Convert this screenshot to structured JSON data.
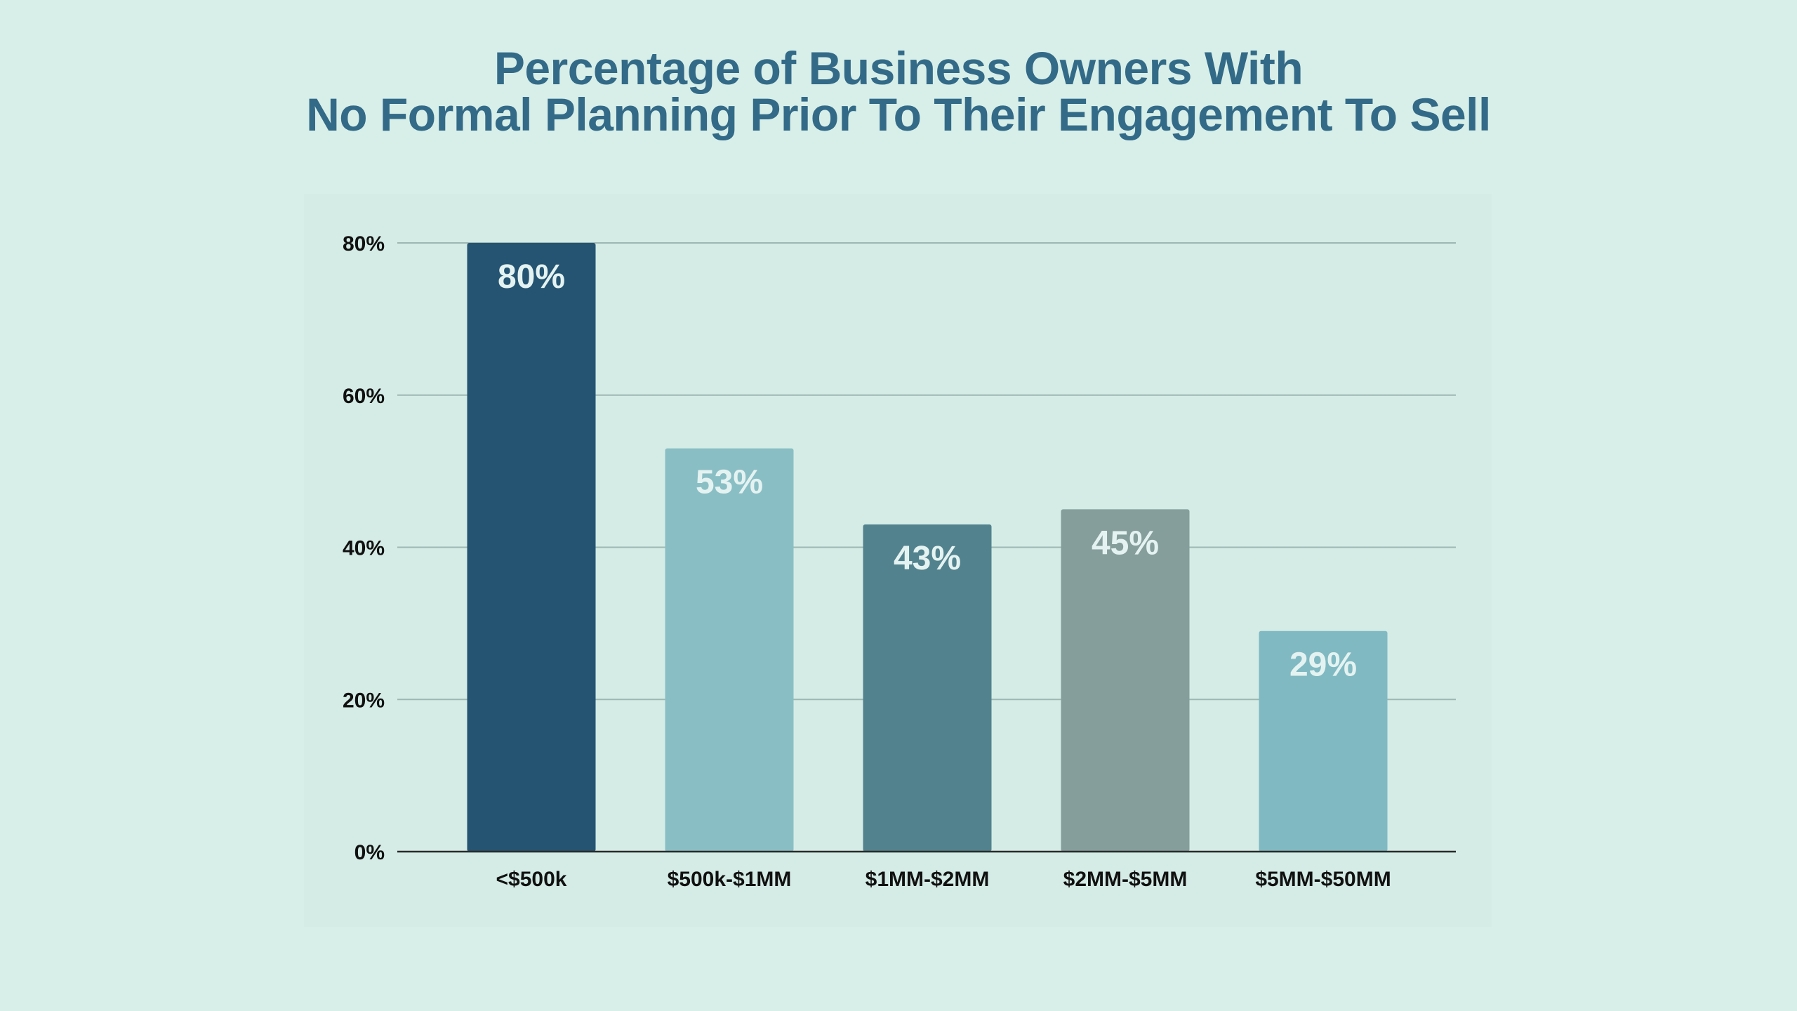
{
  "chart_data": {
    "type": "bar",
    "title": "Percentage of Business Owners With",
    "subtitle": "No Formal Planning Prior To Their Engagement To Sell",
    "categories": [
      "<$500k",
      "$500k-$1MM",
      "$1MM-$2MM",
      "$2MM-$5MM",
      "$5MM-$50MM"
    ],
    "values": [
      80,
      53,
      43,
      45,
      29
    ],
    "data_labels": [
      "80%",
      "53%",
      "43%",
      "45%",
      "29%"
    ],
    "bar_colors": [
      "#255472",
      "#8abec5",
      "#52828e",
      "#859e9b",
      "#80b9c2"
    ],
    "yticks": [
      0,
      20,
      40,
      60,
      80
    ],
    "ytick_labels": [
      "0%",
      "20%",
      "40%",
      "60%",
      "80%"
    ],
    "ylim": [
      0,
      80
    ],
    "xlabel": "",
    "ylabel": "",
    "grid": true,
    "legend": "none"
  },
  "colors": {
    "background": "#d8efe9",
    "title": "#336a87",
    "gridline": "#9fb7b2",
    "axis": "#2a2a2a",
    "tick_text": "#111111",
    "label_text": "#e4f3f1"
  }
}
